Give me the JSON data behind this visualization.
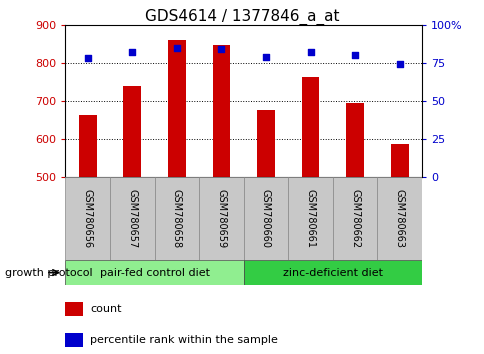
{
  "title": "GDS4614 / 1377846_a_at",
  "samples": [
    "GSM780656",
    "GSM780657",
    "GSM780658",
    "GSM780659",
    "GSM780660",
    "GSM780661",
    "GSM780662",
    "GSM780663"
  ],
  "counts": [
    662,
    738,
    860,
    848,
    676,
    763,
    695,
    588
  ],
  "percentiles": [
    78,
    82,
    85,
    84,
    79,
    82,
    80,
    74
  ],
  "ylim_left": [
    500,
    900
  ],
  "ylim_right": [
    0,
    100
  ],
  "yticks_left": [
    500,
    600,
    700,
    800,
    900
  ],
  "yticks_right": [
    0,
    25,
    50,
    75,
    100
  ],
  "ytick_labels_right": [
    "0",
    "25",
    "50",
    "75",
    "100%"
  ],
  "bar_color": "#cc0000",
  "dot_color": "#0000cc",
  "group1_label": "pair-fed control diet",
  "group2_label": "zinc-deficient diet",
  "group1_color": "#90ee90",
  "group2_color": "#33cc44",
  "group_label_prefix": "growth protocol",
  "legend_count_label": "count",
  "legend_pct_label": "percentile rank within the sample",
  "bar_width": 0.4,
  "sample_box_color": "#c8c8c8",
  "title_fontsize": 11
}
